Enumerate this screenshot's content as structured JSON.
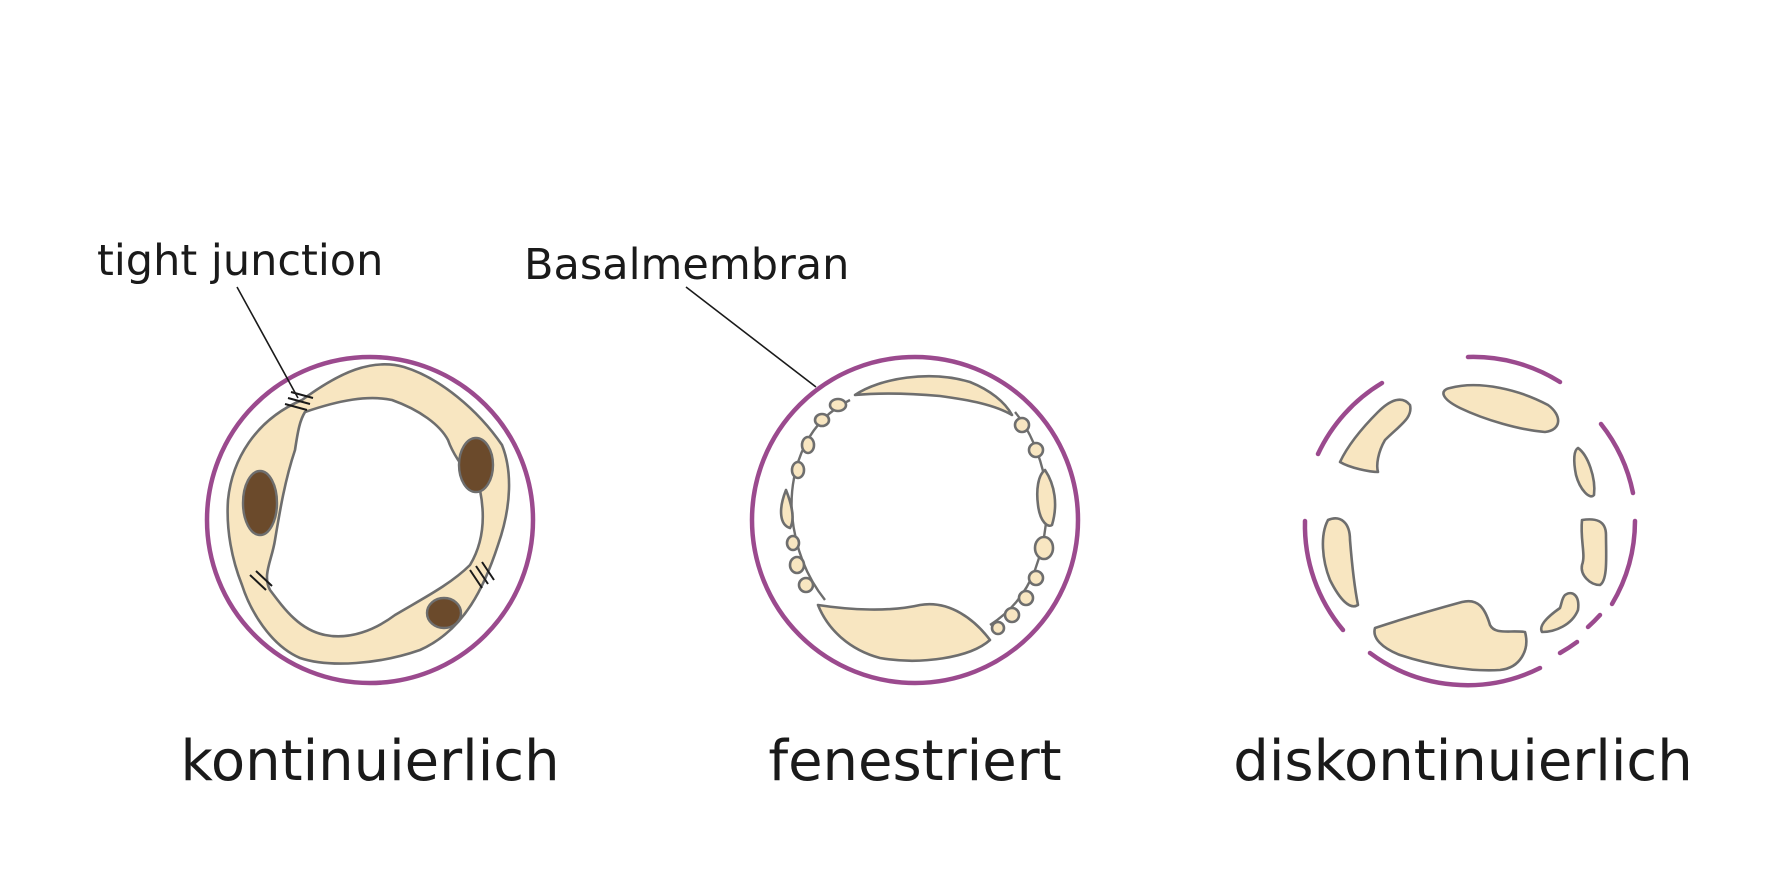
{
  "annotations": {
    "tight_junction": "tight junction",
    "basement_membrane": "Basalmembran"
  },
  "captions": {
    "continuous": "kontinuierlich",
    "fenestrated": "fenestriert",
    "discontinuous": "diskontinuierlich"
  },
  "colors": {
    "basement_membrane": "#9b4a8e",
    "endothelial_cell": "#f8e6c1",
    "cell_outline": "#6e6e6e",
    "nucleus": "#6b4a2b",
    "text": "#1a1a1a"
  }
}
